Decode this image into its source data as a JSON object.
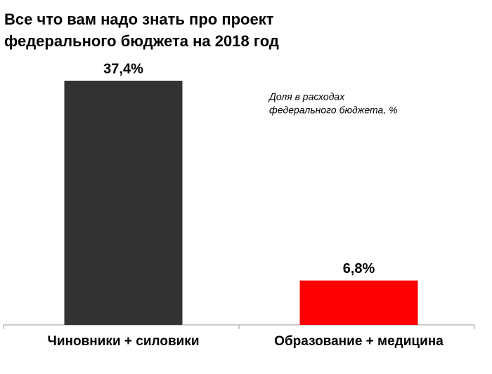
{
  "chart_data": {
    "type": "bar",
    "title": [
      "Все что вам надо знать про проект",
      "федерального бюджета на 2018 год"
    ],
    "annotation": [
      "Доля в расходах",
      "федерального бюджета, %"
    ],
    "categories": [
      "Чиновники + силовики",
      "Образование + медицина"
    ],
    "values": [
      37.4,
      6.8
    ],
    "value_labels": [
      "37,4%",
      "6,8%"
    ],
    "colors": [
      "#333333",
      "#ff0000"
    ]
  }
}
